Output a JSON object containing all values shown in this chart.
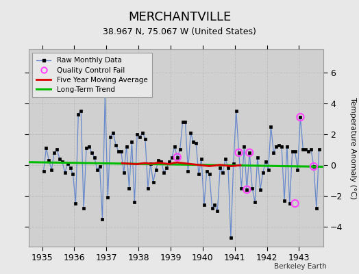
{
  "title": "MERCHANTVILLE",
  "subtitle": "38.967 N, 75.067 W (United States)",
  "ylabel": "Temperature Anomaly (°C)",
  "credit": "Berkeley Earth",
  "xlim": [
    1934.58,
    1943.75
  ],
  "ylim": [
    -5.3,
    7.5
  ],
  "yticks": [
    -4,
    -2,
    0,
    2,
    4,
    6
  ],
  "xticks": [
    1935,
    1936,
    1937,
    1938,
    1939,
    1940,
    1941,
    1942,
    1943
  ],
  "bg_color": "#e8e8e8",
  "plot_bg_color": "#d0d0d0",
  "raw_x": [
    1935.042,
    1935.125,
    1935.208,
    1935.292,
    1935.375,
    1935.458,
    1935.542,
    1935.625,
    1935.708,
    1935.792,
    1935.875,
    1935.958,
    1936.042,
    1936.125,
    1936.208,
    1936.292,
    1936.375,
    1936.458,
    1936.542,
    1936.625,
    1936.708,
    1936.792,
    1936.875,
    1936.958,
    1937.042,
    1937.125,
    1937.208,
    1937.292,
    1937.375,
    1937.458,
    1937.542,
    1937.625,
    1937.708,
    1937.792,
    1937.875,
    1937.958,
    1938.042,
    1938.125,
    1938.208,
    1938.292,
    1938.375,
    1938.458,
    1938.542,
    1938.625,
    1938.708,
    1938.792,
    1938.875,
    1938.958,
    1939.042,
    1939.125,
    1939.208,
    1939.292,
    1939.375,
    1939.458,
    1939.542,
    1939.625,
    1939.708,
    1939.792,
    1939.875,
    1939.958,
    1940.042,
    1940.125,
    1940.208,
    1940.292,
    1940.375,
    1940.458,
    1940.542,
    1940.625,
    1940.708,
    1940.792,
    1940.875,
    1940.958,
    1941.042,
    1941.125,
    1941.208,
    1941.292,
    1941.375,
    1941.458,
    1941.542,
    1941.625,
    1941.708,
    1941.792,
    1941.875,
    1941.958,
    1942.042,
    1942.125,
    1942.208,
    1942.292,
    1942.375,
    1942.458,
    1942.542,
    1942.625,
    1942.708,
    1942.792,
    1942.875,
    1942.958,
    1943.042,
    1943.125,
    1943.208,
    1943.292,
    1943.375,
    1943.458,
    1943.542,
    1943.625
  ],
  "raw_y": [
    -0.4,
    1.1,
    0.3,
    -0.3,
    0.8,
    1.0,
    0.4,
    0.2,
    -0.5,
    0.1,
    -0.2,
    -0.6,
    -2.5,
    3.3,
    3.5,
    -2.8,
    1.1,
    1.2,
    0.8,
    0.5,
    -0.3,
    -0.1,
    -3.5,
    4.6,
    -2.1,
    1.8,
    2.1,
    1.3,
    0.9,
    0.9,
    -0.5,
    1.2,
    -1.5,
    1.5,
    -2.4,
    2.0,
    1.8,
    2.1,
    1.7,
    -1.5,
    0.1,
    -1.1,
    -0.3,
    0.3,
    0.2,
    -0.5,
    -0.2,
    0.2,
    0.5,
    1.2,
    0.5,
    1.0,
    2.8,
    2.8,
    -0.4,
    2.1,
    1.5,
    1.4,
    -0.6,
    0.4,
    -2.6,
    -0.4,
    -0.6,
    -2.8,
    -2.6,
    -3.0,
    -0.2,
    -0.5,
    0.4,
    -0.2,
    -4.7,
    0.1,
    3.5,
    0.8,
    -1.5,
    1.2,
    -1.6,
    0.8,
    -1.5,
    -2.4,
    0.5,
    -1.6,
    -0.5,
    0.2,
    -0.3,
    2.5,
    0.8,
    1.2,
    1.3,
    1.2,
    -2.3,
    1.2,
    -2.5,
    0.9,
    0.9,
    -0.3,
    3.1,
    1.0,
    1.0,
    0.9,
    1.0,
    -0.1,
    -2.8,
    1.0
  ],
  "qc_fail_x": [
    1939.208,
    1941.125,
    1941.375,
    1941.458,
    1942.875,
    1943.042,
    1943.458
  ],
  "qc_fail_y": [
    0.5,
    0.8,
    -1.6,
    0.8,
    -2.5,
    3.1,
    -0.1
  ],
  "moving_avg_x": [
    1937.458,
    1937.542,
    1937.625,
    1937.708,
    1937.792,
    1937.875,
    1937.958,
    1938.042,
    1938.125,
    1938.208,
    1938.292,
    1938.375,
    1938.458,
    1938.542,
    1938.625,
    1938.708,
    1938.792,
    1938.875,
    1938.958,
    1939.042,
    1939.125,
    1939.208,
    1939.292,
    1939.375,
    1939.458,
    1939.542,
    1939.625,
    1939.708,
    1939.792,
    1939.875,
    1939.958,
    1940.042,
    1940.125,
    1940.208,
    1940.292,
    1940.375,
    1940.458,
    1940.542,
    1940.625,
    1940.708,
    1940.792,
    1940.875,
    1940.958,
    1941.042,
    1941.125,
    1941.208
  ],
  "moving_avg_y": [
    0.12,
    0.1,
    0.09,
    0.08,
    0.07,
    0.06,
    0.05,
    0.08,
    0.1,
    0.12,
    0.1,
    0.08,
    0.1,
    0.12,
    0.14,
    0.12,
    0.1,
    0.08,
    0.06,
    0.1,
    0.14,
    0.16,
    0.14,
    0.12,
    0.1,
    0.08,
    0.06,
    0.04,
    0.02,
    0.0,
    -0.02,
    -0.04,
    -0.06,
    -0.08,
    -0.06,
    -0.04,
    -0.02,
    0.0,
    -0.02,
    -0.04,
    -0.06,
    -0.08,
    -0.07,
    -0.05,
    -0.03,
    -0.01
  ],
  "trend_x": [
    1934.58,
    1943.75
  ],
  "trend_y": [
    0.18,
    -0.12
  ],
  "raw_line_color": "#6688cc",
  "raw_marker_color": "#000000",
  "qc_color": "#ff44ff",
  "moving_avg_color": "#dd0000",
  "trend_color": "#00bb00",
  "grid_color": "#bbbbbb",
  "spine_color": "#999999",
  "title_fontsize": 13,
  "subtitle_fontsize": 9,
  "tick_fontsize": 9,
  "ylabel_fontsize": 8
}
